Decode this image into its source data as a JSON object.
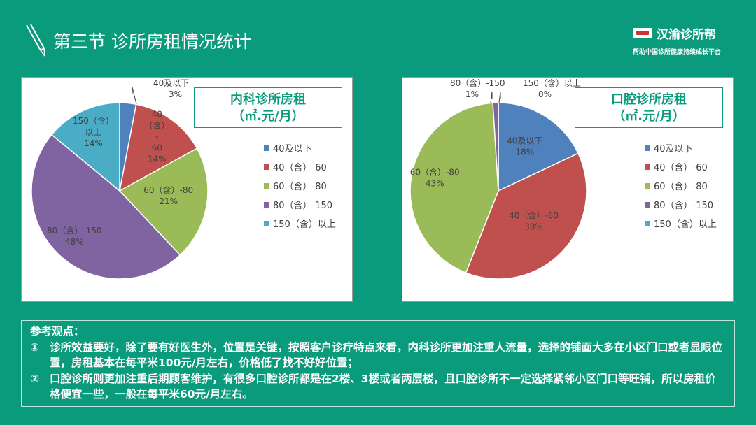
{
  "header": {
    "title": "第三节  诊所房租情况统计",
    "logo_name": "汉渝诊所帮",
    "logo_slogan": "帮助中国诊所健康持续成长平台"
  },
  "colors": {
    "background": "#0a9a7c",
    "accent": "#0a9a7c",
    "series": [
      "#4f81bd",
      "#c0504d",
      "#9bbb59",
      "#8064a2",
      "#4bacc6"
    ]
  },
  "chart_data": [
    {
      "type": "pie",
      "title": "内科诊所房租\n（㎡.元/月）",
      "legend_position": "right",
      "categories": [
        "40及以下",
        "40（含）-60",
        "60（含）-80",
        "80（含）-150",
        "150（含）以上"
      ],
      "values": [
        3,
        14,
        21,
        48,
        14
      ],
      "data_labels": [
        [
          "40及以下",
          "3%"
        ],
        [
          "40",
          "（含）",
          "-",
          "60",
          "14%"
        ],
        [
          "60（含）-80",
          "21%"
        ],
        [
          "80（含）-150",
          "48%"
        ],
        [
          "150（含）",
          "以上",
          "14%"
        ]
      ]
    },
    {
      "type": "pie",
      "title": "口腔诊所房租\n（㎡.元/月）",
      "legend_position": "right",
      "categories": [
        "40及以下",
        "40（含）-60",
        "60（含）-80",
        "80（含）-150",
        "150（含）以上"
      ],
      "values": [
        18,
        38,
        43,
        1,
        0
      ],
      "data_labels": [
        [
          "40及以下",
          "18%"
        ],
        [
          "40（含）-60",
          "38%"
        ],
        [
          "60（含）-80",
          "43%"
        ],
        [
          "80（含）-150",
          "1%"
        ],
        [
          "150（含）以上",
          "0%"
        ]
      ]
    }
  ],
  "notes": {
    "heading": "参考观点：",
    "items": [
      {
        "num": "①",
        "text": "诊所效益要好，除了要有好医生外，位置是关键，按照客户诊疗特点来看，内科诊所更加注重人流量，选择的铺面大多在小区门口或者显眼位置，房租基本在每平米100元/月左右，价格低了找不好好位置；"
      },
      {
        "num": "②",
        "text": "口腔诊所则更加注重后期顾客维护，有很多口腔诊所都是在2楼、3楼或者两层楼，且口腔诊所不一定选择紧邻小区门口等旺铺，所以房租价格便宜一些，一般在每平米60元/月左右。"
      }
    ]
  }
}
